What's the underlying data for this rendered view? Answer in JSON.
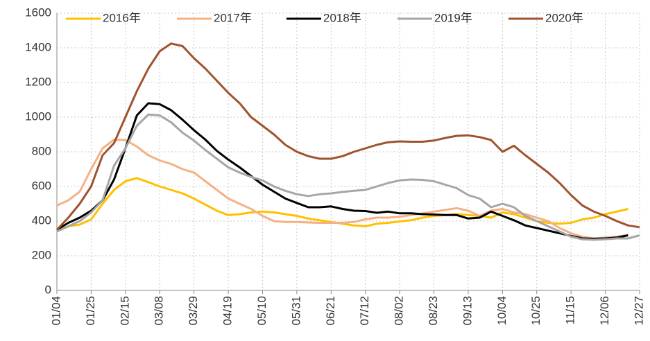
{
  "chart_data": {
    "type": "line",
    "categories": [
      "01/04",
      null,
      null,
      "01/25",
      null,
      null,
      "02/15",
      null,
      null,
      "03/08",
      null,
      null,
      "03/29",
      null,
      null,
      "04/19",
      null,
      null,
      "05/10",
      null,
      null,
      "05/31",
      null,
      null,
      "06/21",
      null,
      null,
      "07/12",
      null,
      null,
      "08/02",
      null,
      null,
      "08/23",
      null,
      null,
      "09/13",
      null,
      null,
      "10/04",
      null,
      null,
      "10/25",
      null,
      null,
      "11/15",
      null,
      null,
      "12/06",
      null,
      null,
      "12/27"
    ],
    "series": [
      {
        "name": "2016年",
        "color": "#ffc000",
        "values": [
          350,
          370,
          380,
          410,
          500,
          580,
          630,
          648,
          625,
          600,
          580,
          560,
          530,
          495,
          460,
          435,
          440,
          450,
          455,
          450,
          440,
          430,
          415,
          405,
          395,
          385,
          375,
          370,
          385,
          390,
          398,
          405,
          420,
          430,
          435,
          440,
          435,
          430,
          420,
          450,
          440,
          420,
          400,
          390,
          385,
          390,
          410,
          420,
          440,
          455,
          470,
          null
        ]
      },
      {
        "name": "2017年",
        "color": "#f4b183",
        "values": [
          490,
          520,
          570,
          700,
          820,
          870,
          868,
          830,
          780,
          750,
          730,
          700,
          680,
          630,
          580,
          530,
          500,
          470,
          430,
          400,
          395,
          395,
          392,
          390,
          390,
          390,
          395,
          410,
          420,
          420,
          425,
          435,
          445,
          455,
          465,
          475,
          460,
          430,
          460,
          470,
          450,
          440,
          420,
          400,
          360,
          330,
          310,
          300,
          305,
          310,
          320,
          null
        ]
      },
      {
        "name": "2018年",
        "color": "#000000",
        "values": [
          350,
          390,
          420,
          460,
          520,
          640,
          820,
          1010,
          1080,
          1075,
          1040,
          985,
          925,
          870,
          805,
          755,
          710,
          660,
          610,
          570,
          530,
          505,
          480,
          480,
          485,
          470,
          460,
          458,
          448,
          455,
          445,
          445,
          440,
          438,
          435,
          435,
          415,
          420,
          455,
          430,
          405,
          375,
          360,
          345,
          330,
          315,
          300,
          298,
          300,
          305,
          318,
          null
        ]
      },
      {
        "name": "2019年",
        "color": "#a6a6a6",
        "values": [
          340,
          370,
          400,
          450,
          520,
          720,
          820,
          950,
          1015,
          1010,
          970,
          910,
          865,
          810,
          760,
          710,
          680,
          655,
          635,
          600,
          575,
          555,
          545,
          555,
          560,
          568,
          575,
          580,
          600,
          620,
          635,
          640,
          638,
          630,
          610,
          590,
          550,
          530,
          480,
          500,
          480,
          430,
          400,
          370,
          340,
          310,
          295,
          292,
          295,
          300,
          300,
          318
        ]
      },
      {
        "name": "2020年",
        "color": "#a0522d",
        "values": [
          350,
          420,
          500,
          600,
          780,
          850,
          1000,
          1150,
          1280,
          1380,
          1425,
          1410,
          1340,
          1280,
          1210,
          1140,
          1080,
          1000,
          950,
          900,
          840,
          800,
          775,
          760,
          760,
          775,
          800,
          820,
          840,
          855,
          860,
          858,
          858,
          865,
          880,
          892,
          895,
          885,
          868,
          800,
          835,
          780,
          730,
          680,
          620,
          550,
          490,
          455,
          430,
          400,
          375,
          365
        ]
      }
    ],
    "ylim": [
      0,
      1600
    ],
    "yticks": [
      0,
      200,
      400,
      600,
      800,
      1000,
      1200,
      1400,
      1600
    ],
    "grid": true
  }
}
